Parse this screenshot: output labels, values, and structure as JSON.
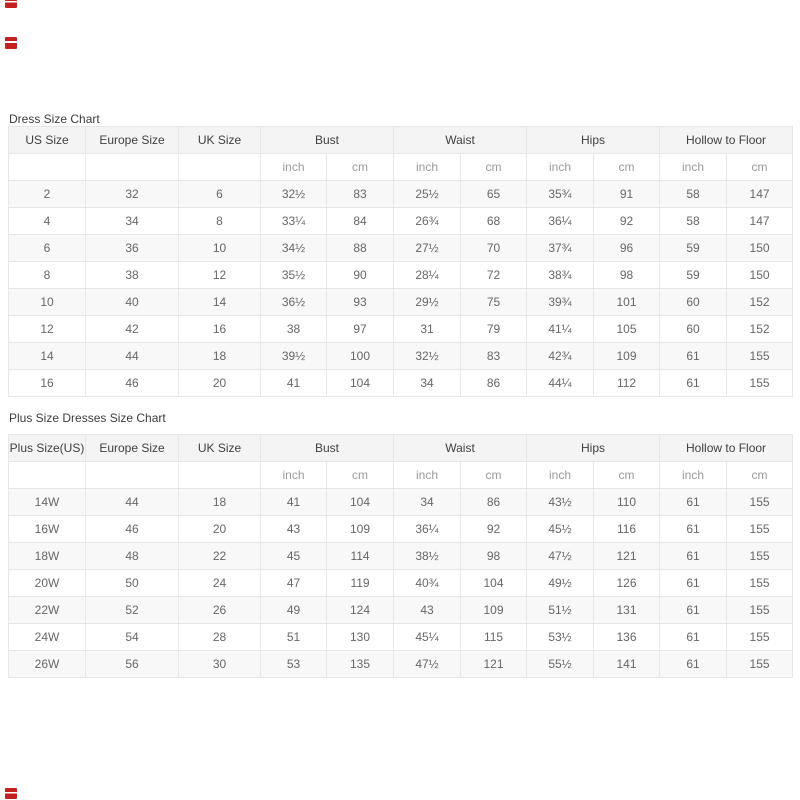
{
  "colors": {
    "header_bg": "#f4f4f4",
    "alt_row_bg": "#f8f8f8",
    "border": "#e7e7e7",
    "header_text": "#404040",
    "data_text": "#666666",
    "unit_text": "#9a9a9a",
    "watermark_red": "#c4201d"
  },
  "tables": [
    {
      "name": "dress-size-chart-table",
      "title": "Dress Size Chart",
      "col_headers": [
        "US Size",
        "Europe Size",
        "UK Size"
      ],
      "group_headers": [
        "Bust",
        "Waist",
        "Hips",
        "Hollow to Floor"
      ],
      "unit_headers": [
        "inch",
        "cm"
      ],
      "rows": [
        [
          "2",
          "32",
          "6",
          "32½",
          "83",
          "25½",
          "65",
          "35¾",
          "91",
          "58",
          "147"
        ],
        [
          "4",
          "34",
          "8",
          "33¼",
          "84",
          "26¾",
          "68",
          "36¼",
          "92",
          "58",
          "147"
        ],
        [
          "6",
          "36",
          "10",
          "34½",
          "88",
          "27½",
          "70",
          "37¾",
          "96",
          "59",
          "150"
        ],
        [
          "8",
          "38",
          "12",
          "35½",
          "90",
          "28¼",
          "72",
          "38¾",
          "98",
          "59",
          "150"
        ],
        [
          "10",
          "40",
          "14",
          "36½",
          "93",
          "29½",
          "75",
          "39¾",
          "101",
          "60",
          "152"
        ],
        [
          "12",
          "42",
          "16",
          "38",
          "97",
          "31",
          "79",
          "41¼",
          "105",
          "60",
          "152"
        ],
        [
          "14",
          "44",
          "18",
          "39½",
          "100",
          "32½",
          "83",
          "42¾",
          "109",
          "61",
          "155"
        ],
        [
          "16",
          "46",
          "20",
          "41",
          "104",
          "34",
          "86",
          "44¼",
          "112",
          "61",
          "155"
        ]
      ]
    },
    {
      "name": "plus-size-chart-table",
      "title": "Plus Size Dresses Size Chart",
      "col_headers": [
        "Plus Size(US)",
        "Europe Size",
        "UK Size"
      ],
      "group_headers": [
        "Bust",
        "Waist",
        "Hips",
        "Hollow to Floor"
      ],
      "unit_headers": [
        "inch",
        "cm"
      ],
      "rows": [
        [
          "14W",
          "44",
          "18",
          "41",
          "104",
          "34",
          "86",
          "43½",
          "110",
          "61",
          "155"
        ],
        [
          "16W",
          "46",
          "20",
          "43",
          "109",
          "36¼",
          "92",
          "45½",
          "116",
          "61",
          "155"
        ],
        [
          "18W",
          "48",
          "22",
          "45",
          "114",
          "38½",
          "98",
          "47½",
          "121",
          "61",
          "155"
        ],
        [
          "20W",
          "50",
          "24",
          "47",
          "119",
          "40¾",
          "104",
          "49½",
          "126",
          "61",
          "155"
        ],
        [
          "22W",
          "52",
          "26",
          "49",
          "124",
          "43",
          "109",
          "51½",
          "131",
          "61",
          "155"
        ],
        [
          "24W",
          "54",
          "28",
          "51",
          "130",
          "45¼",
          "115",
          "53½",
          "136",
          "61",
          "155"
        ],
        [
          "26W",
          "56",
          "30",
          "53",
          "135",
          "47½",
          "121",
          "55½",
          "141",
          "61",
          "155"
        ]
      ]
    }
  ]
}
